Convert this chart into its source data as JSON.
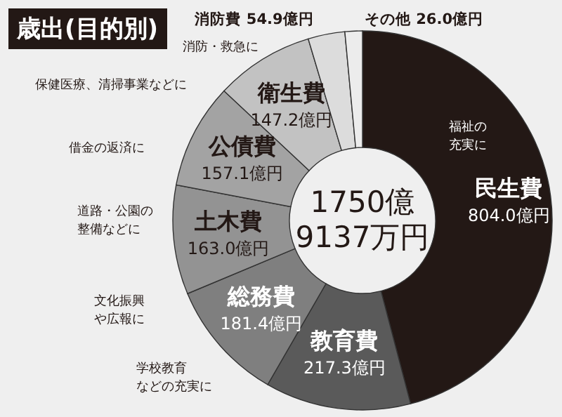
{
  "chart_data": {
    "type": "donut",
    "title": "歳出(目的別)",
    "categories": [
      "民生費",
      "教育費",
      "総務費",
      "土木費",
      "公債費",
      "衛生費",
      "消防費",
      "その他"
    ],
    "values": [
      804.0,
      217.3,
      181.4,
      163.0,
      157.1,
      147.2,
      54.9,
      26.0
    ],
    "value_labels": [
      "804.0億円",
      "217.3億円",
      "181.4億円",
      "163.0億円",
      "157.1億円",
      "147.2億円",
      "54.9億円",
      "26.0億円"
    ],
    "colors": [
      "#231815",
      "#5a5a5a",
      "#7f7f7f",
      "#939393",
      "#a3a3a3",
      "#c2c2c2",
      "#dcdcdc",
      "#ececec"
    ],
    "annotations": [
      "福祉の充実に",
      "学校教育などの充実に",
      "文化振興や広報に",
      "道路・公園の整備などに",
      "借金の返済に",
      "保健医療、清掃事業などに",
      "消防・救急に",
      "1750億9137万円"
    ]
  }
}
